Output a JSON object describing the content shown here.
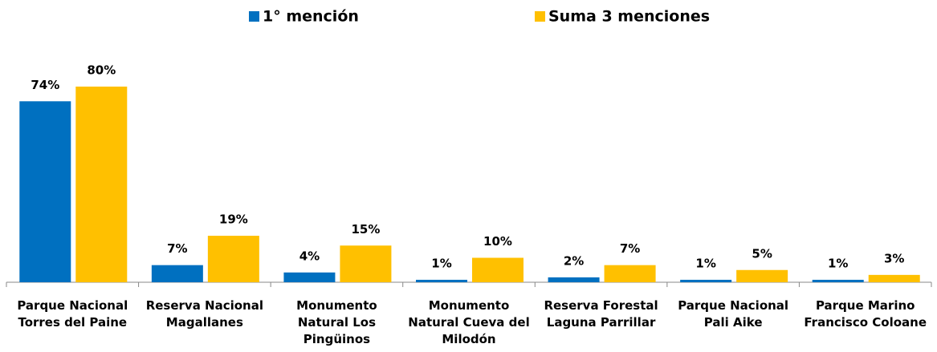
{
  "chart_data": {
    "type": "bar",
    "categories": [
      "Parque Nacional Torres del Paine",
      "Reserva Nacional Magallanes",
      "Monumento Natural Los Pingüinos",
      "Monumento Natural Cueva del Milodón",
      "Reserva Forestal Laguna Parrillar",
      "Parque Nacional Pali Aike",
      "Parque Marino Francisco Coloane"
    ],
    "series": [
      {
        "name": "1° mención",
        "color": "#0070c0",
        "values": [
          74,
          7,
          4,
          1,
          2,
          1,
          1
        ],
        "value_labels": [
          "74%",
          "7%",
          "4%",
          "1%",
          "2%",
          "1%",
          "1%"
        ]
      },
      {
        "name": "Suma 3 menciones",
        "color": "#ffc000",
        "values": [
          80,
          19,
          15,
          10,
          7,
          5,
          3
        ],
        "value_labels": [
          "80%",
          "19%",
          "15%",
          "10%",
          "7%",
          "5%",
          "3%"
        ]
      }
    ],
    "legend": "top"
  }
}
